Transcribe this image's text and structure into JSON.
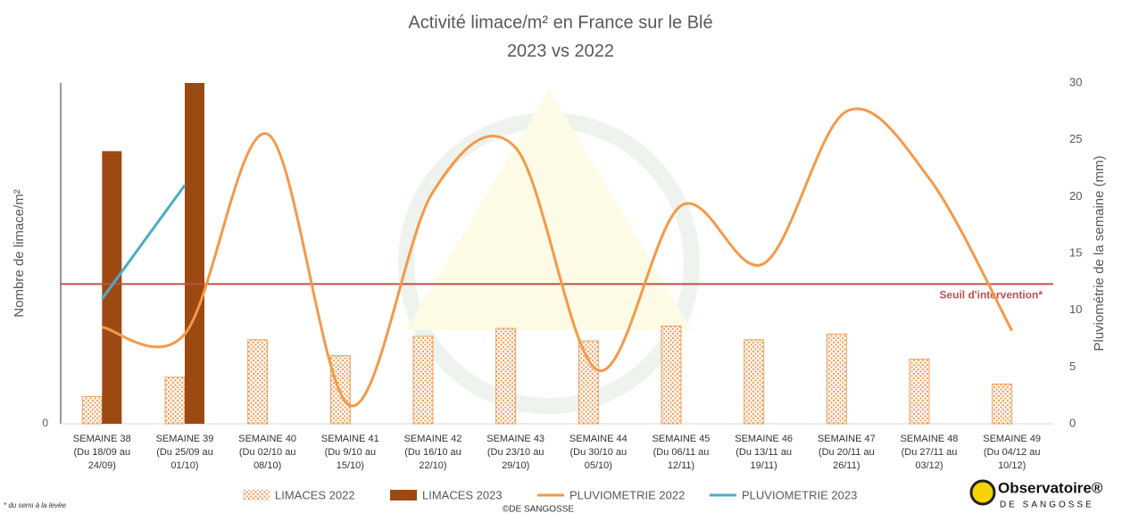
{
  "chart_data": {
    "type": "bar_line",
    "title": "Activité limace/m² en France sur le Blé",
    "subtitle": "2023 vs 2022",
    "y_label": "Nombre de limace/m²",
    "y2_label": "Pluviométrie de la semaine (mm)",
    "categories": [
      [
        "SEMAINE 38",
        "(Du 18/09 au",
        "24/09)"
      ],
      [
        "SEMAINE 39",
        "(Du 25/09 au",
        "01/10)"
      ],
      [
        "SEMAINE 40",
        "(Du 02/10 au",
        "08/10)"
      ],
      [
        "SEMAINE 41",
        "(Du 9/10 au",
        "15/10)"
      ],
      [
        "SEMAINE 42",
        "(Du 16/10 au",
        "22/10)"
      ],
      [
        "SEMAINE 43",
        "(Du 23/10 au",
        "29/10)"
      ],
      [
        "SEMAINE 44",
        "(Du 30/10 au",
        "05/10)"
      ],
      [
        "SEMAINE 45",
        "(Du 06/11 au",
        "12/11)"
      ],
      [
        "SEMAINE 46",
        "(Du 13/11 au",
        "19/11)"
      ],
      [
        "SEMAINE 47",
        "(Du 20/11 au",
        "26/11)"
      ],
      [
        "SEMAINE 48",
        "(Du 27/11 au",
        "03/12)"
      ],
      [
        "SEMAINE 49",
        "(Du 04/12 au",
        "10/12)"
      ]
    ],
    "series": [
      {
        "name": "LIMACES 2022",
        "kind": "bar",
        "color": "#f0a060",
        "pattern": "dots",
        "values": [
          2.4,
          4.1,
          7.4,
          6.0,
          7.7,
          8.4,
          7.3,
          8.6,
          7.4,
          7.9,
          5.7,
          3.5
        ]
      },
      {
        "name": "LIMACES 2023",
        "kind": "bar",
        "color": "#9c4a12",
        "values": [
          24.0,
          30.0,
          null,
          null,
          null,
          null,
          null,
          null,
          null,
          null,
          null,
          null
        ]
      },
      {
        "name": "PLUVIOMETRIE 2022",
        "kind": "line",
        "axis": "y2",
        "color": "#f39a4a",
        "values": [
          8.5,
          7.9,
          25.5,
          1.6,
          20.4,
          24.3,
          4.7,
          19.2,
          14.1,
          27.5,
          21.6,
          8.2
        ]
      },
      {
        "name": "PLUVIOMETRIE 2023",
        "kind": "line",
        "axis": "y2",
        "color": "#4bacc6",
        "values": [
          11.0,
          21.0,
          null,
          null,
          null,
          null,
          null,
          null,
          null,
          null,
          null,
          null
        ]
      }
    ],
    "ylim": [
      0,
      30
    ],
    "yticks": [
      0
    ],
    "y2lim": [
      0,
      30
    ],
    "y2ticks": [
      0,
      5,
      10,
      15,
      20,
      25,
      30
    ],
    "threshold": 12.3,
    "threshold_label": "Seuil d'intervention*",
    "threshold_color": "#c0504d",
    "footnote": "* du semi à la levée",
    "copyright": "©DE SANGOSSE",
    "logo": {
      "title": "Observatoire®",
      "subtitle": "DE SANGOSSE"
    }
  }
}
